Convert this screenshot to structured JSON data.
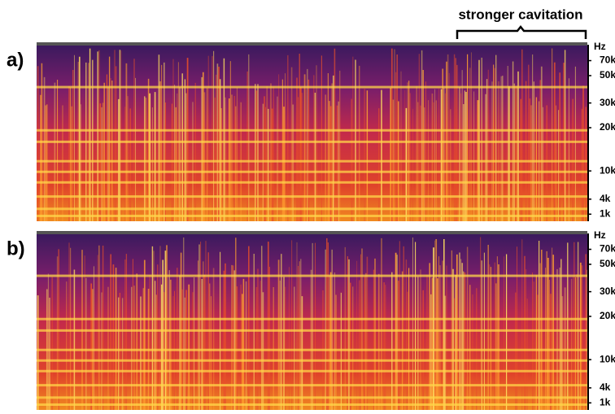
{
  "title": "stronger cavitation",
  "panels": [
    {
      "label": "a)",
      "unit": "Hz",
      "ticks": [
        "70k",
        "50k",
        "30k",
        "20k",
        "10k",
        "4k",
        "1k"
      ]
    },
    {
      "label": "b)",
      "unit": "Hz",
      "ticks": [
        "70k",
        "50k",
        "30k",
        "20k",
        "10k",
        "4k",
        "1k"
      ]
    }
  ]
}
